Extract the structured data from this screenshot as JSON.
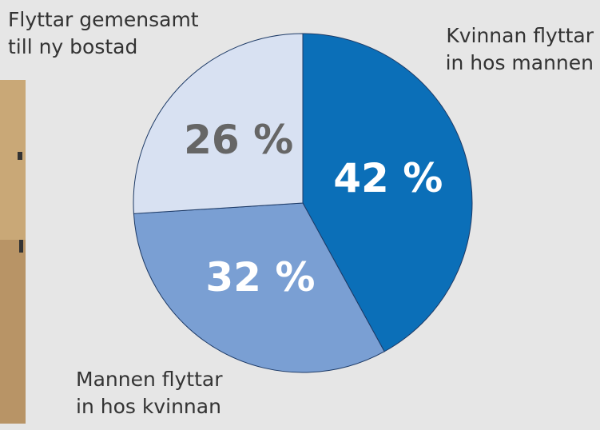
{
  "chart_data": {
    "type": "pie",
    "categories": [
      "Kvinnan flyttar\n in hos mannen",
      "Mannen flyttar\nin hos kvinnan",
      "Flyttar gemensamt\ntill ny bostad"
    ],
    "values": [
      42,
      32,
      26
    ],
    "value_labels": [
      "42 %",
      "32 %",
      "26 %"
    ],
    "colors": [
      "#0b6fb8",
      "#7a9fd3",
      "#d8e1f2"
    ],
    "label_colors": [
      "#ffffff",
      "#ffffff",
      "#666666"
    ]
  }
}
